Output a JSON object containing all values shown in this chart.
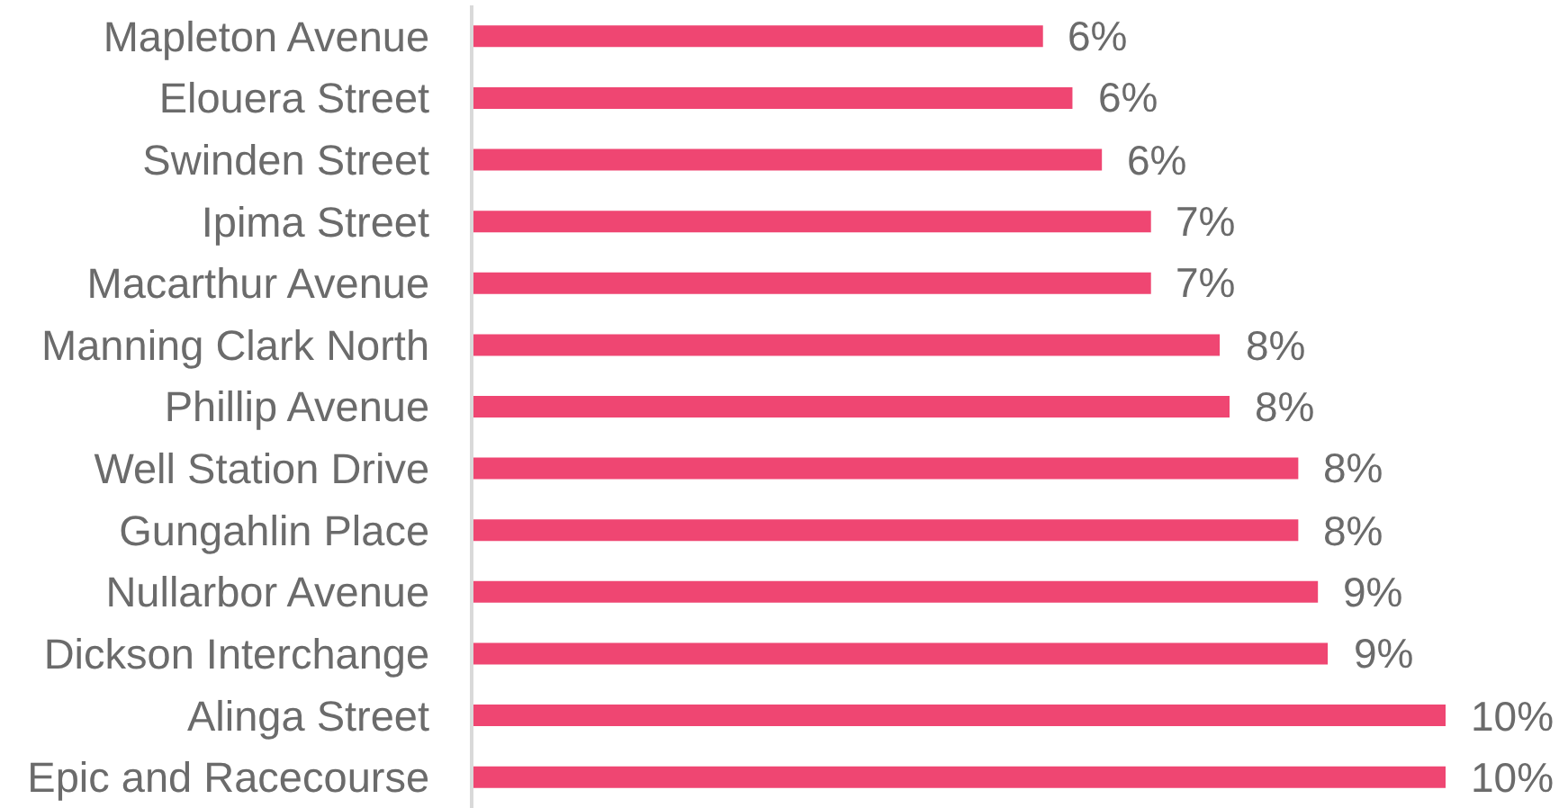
{
  "chart_data": {
    "type": "bar",
    "orientation": "horizontal",
    "categories": [
      "Mapleton Avenue",
      "Elouera Street",
      "Swinden Street",
      "Ipima Street",
      "Macarthur Avenue",
      "Manning Clark North",
      "Phillip Avenue",
      "Well Station Drive",
      "Gungahlin Place",
      "Nullarbor Avenue",
      "Dickson Interchange",
      "Alinga Street",
      "Epic and Racecourse"
    ],
    "values": [
      5.8,
      6.1,
      6.4,
      6.9,
      6.9,
      7.6,
      7.7,
      8.4,
      8.4,
      8.6,
      8.7,
      9.9,
      9.9
    ],
    "value_labels": [
      "6%",
      "6%",
      "6%",
      "7%",
      "7%",
      "8%",
      "8%",
      "8%",
      "8%",
      "9%",
      "9%",
      "10%",
      "10%"
    ],
    "color": "#ef4672"
  }
}
